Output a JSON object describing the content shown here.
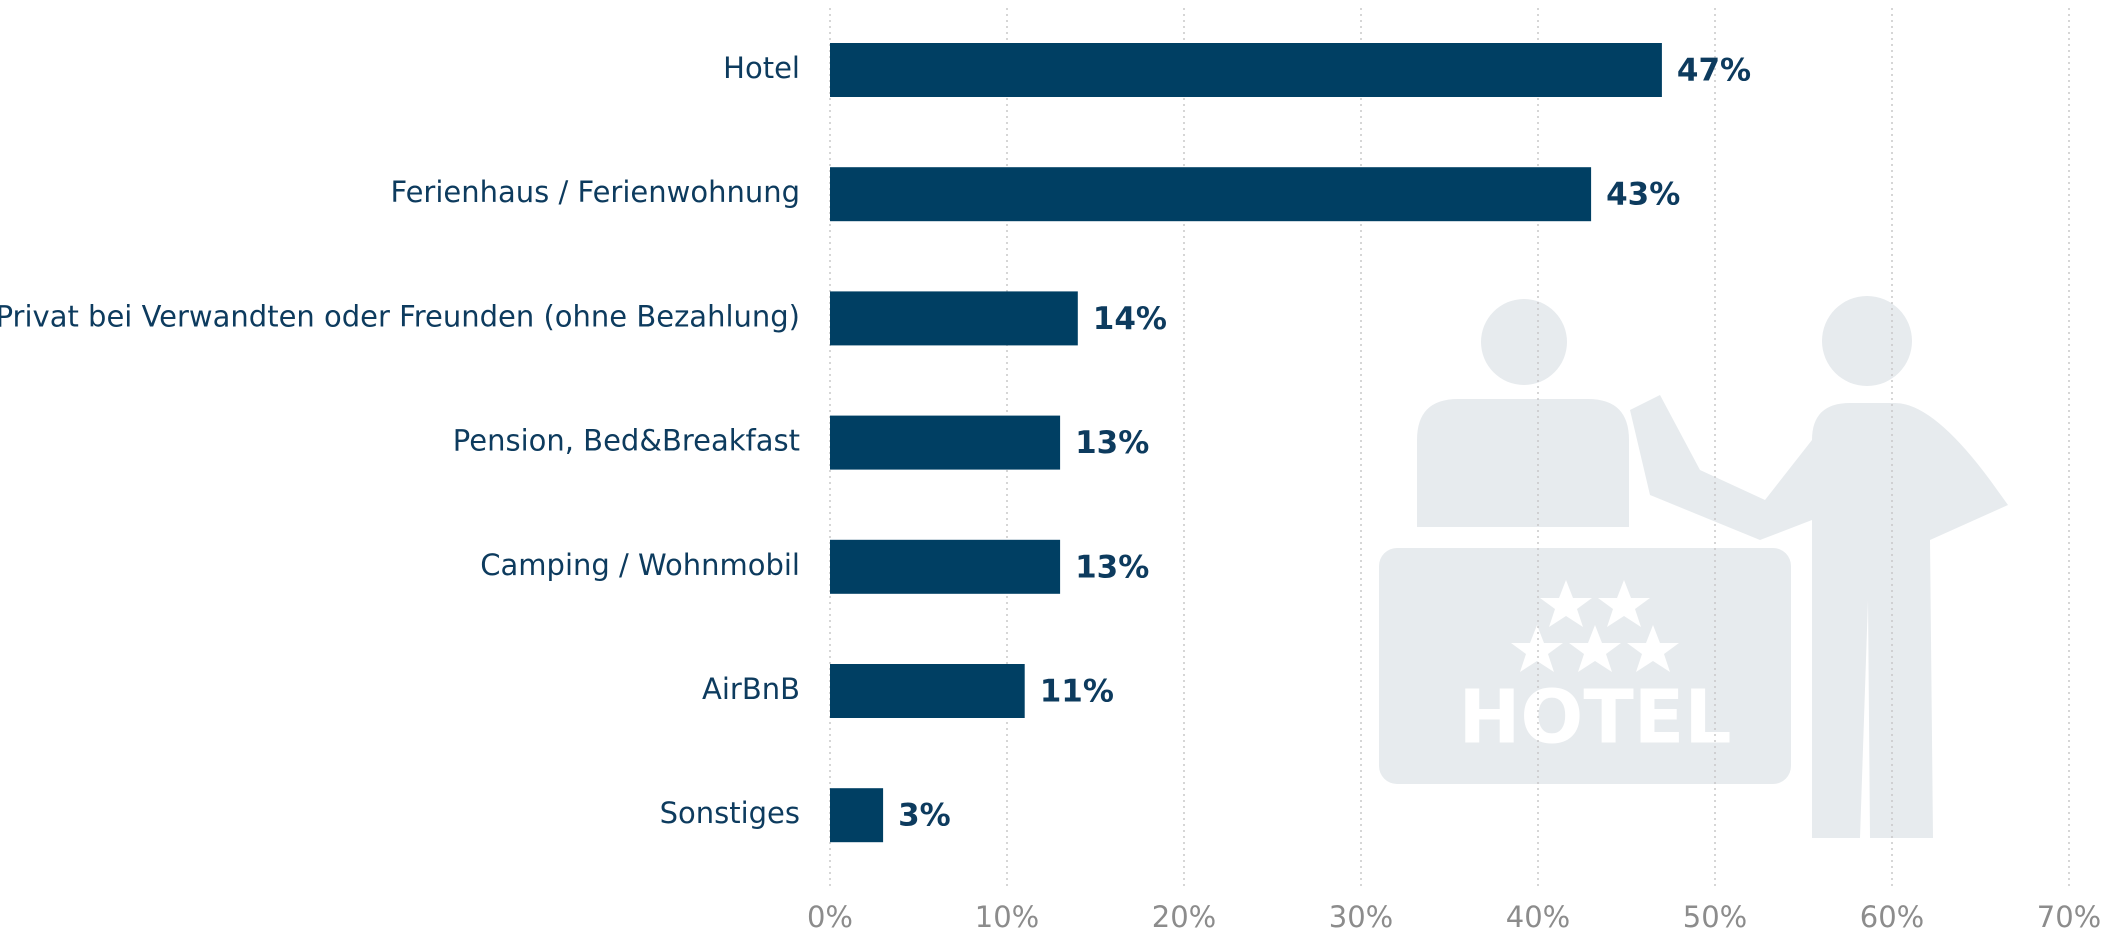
{
  "chart_data": {
    "type": "bar",
    "orientation": "horizontal",
    "categories": [
      "Hotel",
      "Ferienhaus / Ferienwohnung",
      "Privat bei Verwandten oder Freunden (ohne Bezahlung)",
      "Pension, Bed&Breakfast",
      "Camping / Wohnmobil",
      "AirBnB",
      "Sonstiges"
    ],
    "values": [
      47,
      43,
      14,
      13,
      13,
      11,
      3
    ],
    "value_labels": [
      "47%",
      "43%",
      "14%",
      "13%",
      "13%",
      "11%",
      "3%"
    ],
    "color": "#003f63",
    "xlim": [
      0,
      70
    ],
    "xticks": [
      {
        "value": 0,
        "label": "0%"
      },
      {
        "value": 10,
        "label": "10%"
      },
      {
        "value": 20,
        "label": "20%"
      },
      {
        "value": 30,
        "label": "30%"
      },
      {
        "value": 40,
        "label": "40%"
      },
      {
        "value": 50,
        "label": "50%"
      },
      {
        "value": 60,
        "label": "60%"
      },
      {
        "value": 70,
        "label": "70%"
      }
    ],
    "grid": true
  },
  "illustration": {
    "label": "HOTEL"
  }
}
